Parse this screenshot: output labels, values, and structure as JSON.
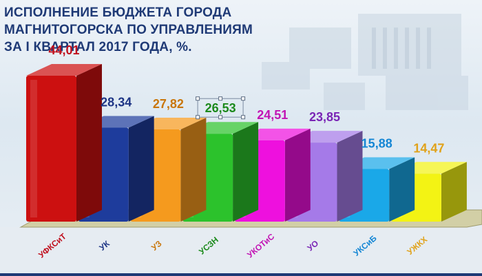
{
  "chart_data": {
    "type": "bar",
    "title_lines": [
      "ИСПОЛНЕНИЕ БЮДЖЕТА ГОРОДА",
      "МАГНИТОГОРСКА ПО УПРАВЛЕНИЯМ",
      "ЗА  I КВАРТАЛ 2017 ГОДА, %."
    ],
    "categories": [
      "УФКСиТ",
      "УК",
      "УЗ",
      "УСЗН",
      "УКОТиС",
      "УО",
      "УКСиБ",
      "УЖКХ"
    ],
    "values": [
      44.01,
      28.34,
      27.82,
      26.53,
      24.51,
      23.85,
      15.88,
      14.47
    ],
    "value_labels": [
      "44,01",
      "28,34",
      "27,82",
      "26,53",
      "24,51",
      "23,85",
      "15,88",
      "14,47"
    ],
    "colors": [
      "#cc1010",
      "#1e3c9c",
      "#f59a1e",
      "#2cc22c",
      "#ee10de",
      "#a57ae8",
      "#1aa8e8",
      "#f3f314"
    ],
    "label_colors": [
      "#c0101e",
      "#1e3585",
      "#c9760b",
      "#1c8a1c",
      "#c214b4",
      "#7a25b5",
      "#1486d4",
      "#e0a21a"
    ],
    "highlighted_label_index": 3,
    "ylim": [
      0,
      50
    ],
    "grid": false,
    "legend": "none"
  }
}
